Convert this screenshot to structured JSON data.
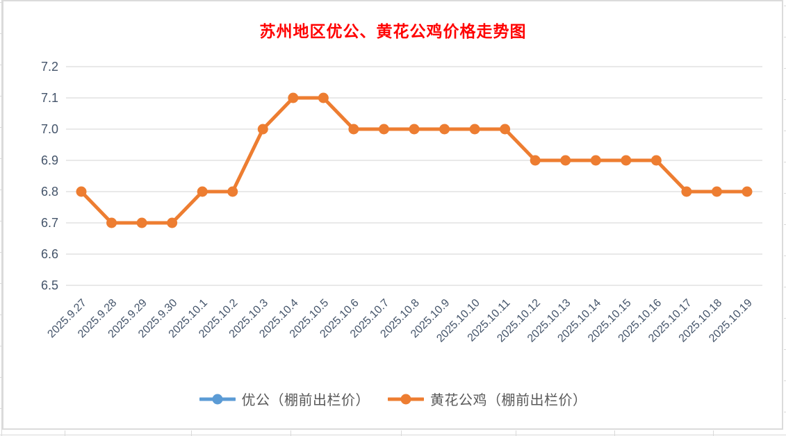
{
  "chart_data": {
    "type": "line",
    "title": "苏州地区优公、黄花公鸡价格走势图",
    "title_color": "#FF0000",
    "categories": [
      "2025.9.27",
      "2025.9.28",
      "2025.9.29",
      "2025.9.30",
      "2025.10.1",
      "2025.10.2",
      "2025.10.3",
      "2025.10.4",
      "2025.10.5",
      "2025.10.6",
      "2025.10.7",
      "2025.10.8",
      "2025.10.9",
      "2025.10.10",
      "2025.10.11",
      "2025.10.12",
      "2025.10.13",
      "2025.10.14",
      "2025.10.15",
      "2025.10.16",
      "2025.10.17",
      "2025.10.18",
      "2025.10.19"
    ],
    "series": [
      {
        "name": "优公（棚前出栏价）",
        "color": "#5B9BD5",
        "values": []
      },
      {
        "name": "黄花公鸡（棚前出栏价）",
        "color": "#ED7D31",
        "values": [
          6.8,
          6.7,
          6.7,
          6.7,
          6.8,
          6.8,
          7.0,
          7.1,
          7.1,
          7.0,
          7.0,
          7.0,
          7.0,
          7.0,
          7.0,
          6.9,
          6.9,
          6.9,
          6.9,
          6.9,
          6.8,
          6.8,
          6.8
        ]
      }
    ],
    "ylim": [
      6.5,
      7.2
    ],
    "ytick_labels": [
      "7.2",
      "7.1",
      "7.0",
      "6.9",
      "6.8",
      "6.7",
      "6.6",
      "6.5"
    ],
    "xlabel": "",
    "ylabel": "",
    "grid": true,
    "grid_color": "#E2E2E2",
    "axis_label_color": "#44546A",
    "legend_position": "bottom",
    "legend_text_color": "#595959"
  }
}
